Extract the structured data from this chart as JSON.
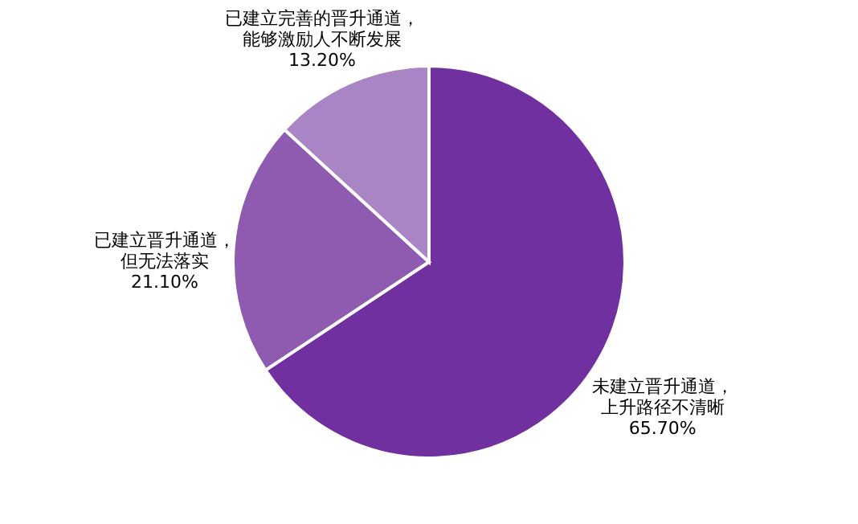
{
  "chart_data": {
    "type": "pie",
    "categories": [
      "未建立晋升通道，上升路径不清晰",
      "已建立晋升通道，但无法落实",
      "已建立完善的晋升通道，能够激励人不断发展"
    ],
    "values": [
      65.7,
      21.1,
      13.2
    ],
    "value_labels": [
      "65.70%",
      "21.10%",
      "13.20%"
    ],
    "colors": [
      "#7030a0",
      "#8e5bb0",
      "#a985c6"
    ]
  }
}
